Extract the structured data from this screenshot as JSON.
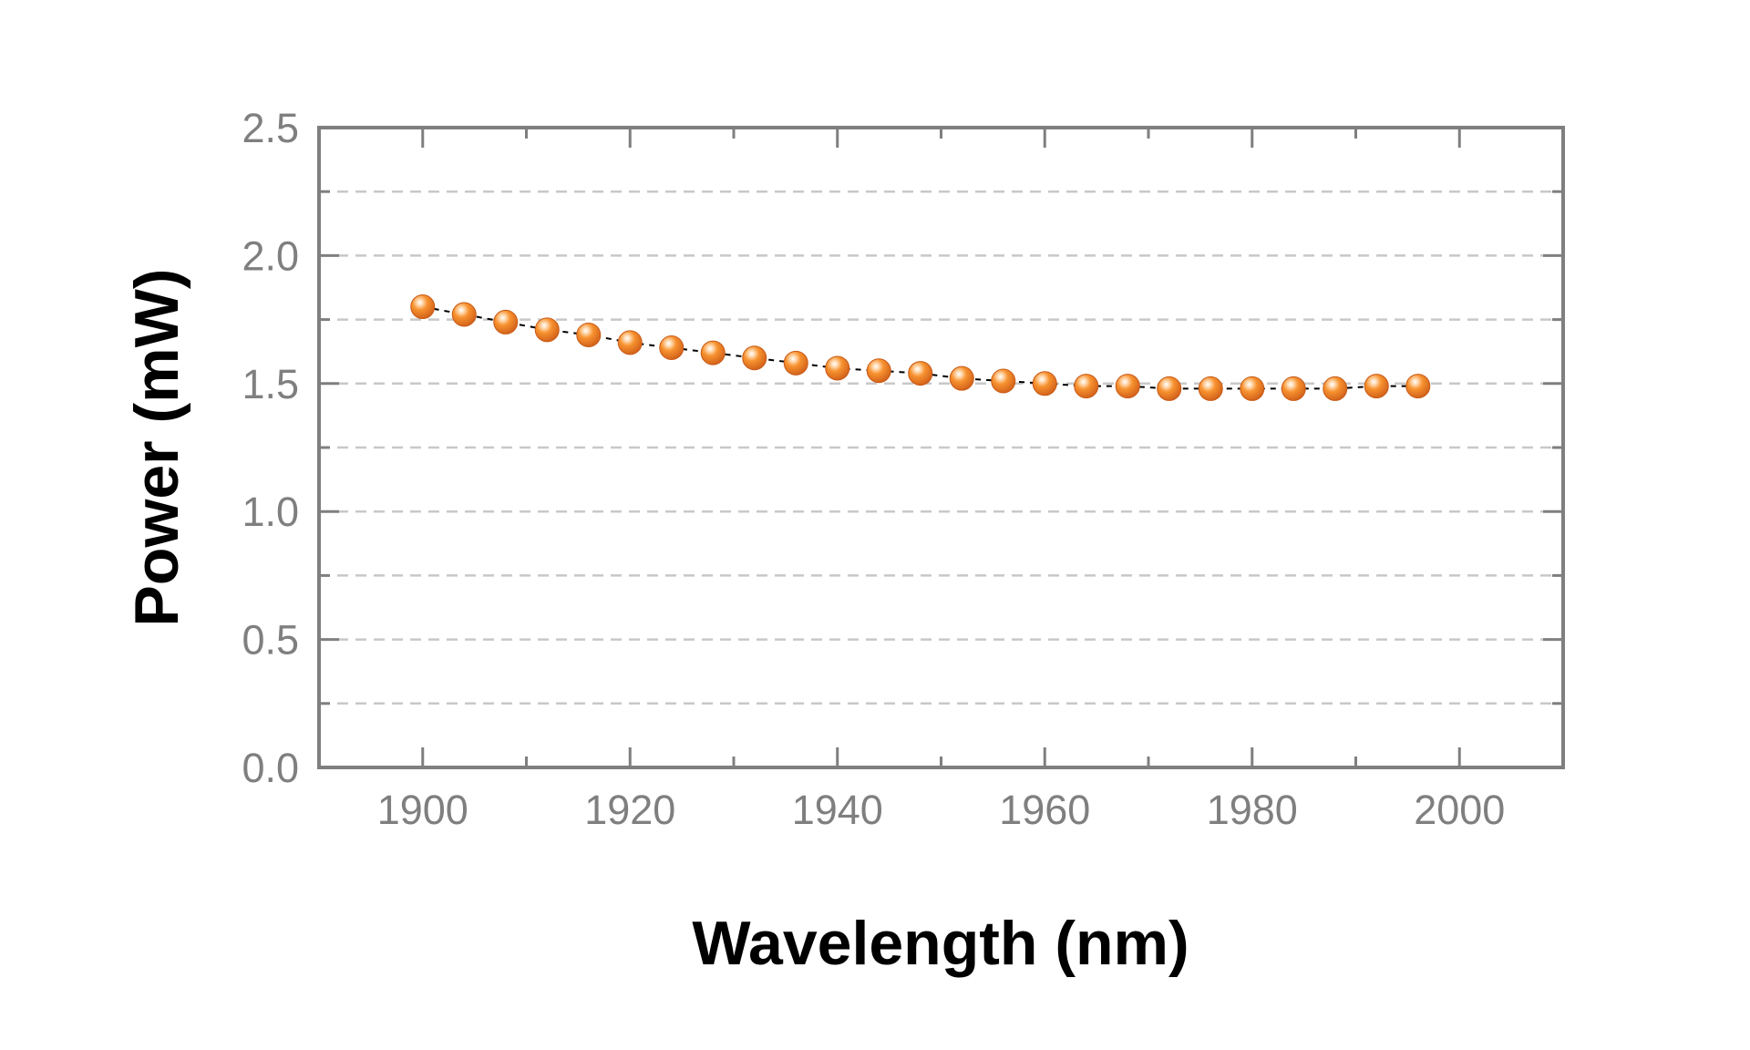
{
  "chart_data": {
    "type": "scatter",
    "xlabel": "Wavelength (nm)",
    "ylabel": "Power (mW)",
    "xlim": [
      1890,
      2010
    ],
    "ylim": [
      0.0,
      2.5
    ],
    "x_ticks": [
      "1900",
      "1920",
      "1940",
      "1960",
      "1980",
      "2000"
    ],
    "y_ticks": [
      "0.0",
      "0.5",
      "1.0",
      "1.5",
      "2.0",
      "2.5"
    ],
    "grid": "horizontal dashed",
    "marker_color": "#f28a2e",
    "line_color": "#000000",
    "series": [
      {
        "x": [
          1900,
          1904,
          1908,
          1912,
          1916,
          1920,
          1924,
          1928,
          1932,
          1936,
          1940,
          1944,
          1948,
          1952,
          1956,
          1960,
          1964,
          1968,
          1972,
          1976,
          1980,
          1984,
          1988,
          1992,
          1996
        ],
        "y": [
          1.8,
          1.77,
          1.74,
          1.71,
          1.69,
          1.66,
          1.64,
          1.62,
          1.6,
          1.58,
          1.56,
          1.55,
          1.54,
          1.52,
          1.51,
          1.5,
          1.49,
          1.49,
          1.48,
          1.48,
          1.48,
          1.48,
          1.48,
          1.49,
          1.49
        ]
      }
    ]
  }
}
